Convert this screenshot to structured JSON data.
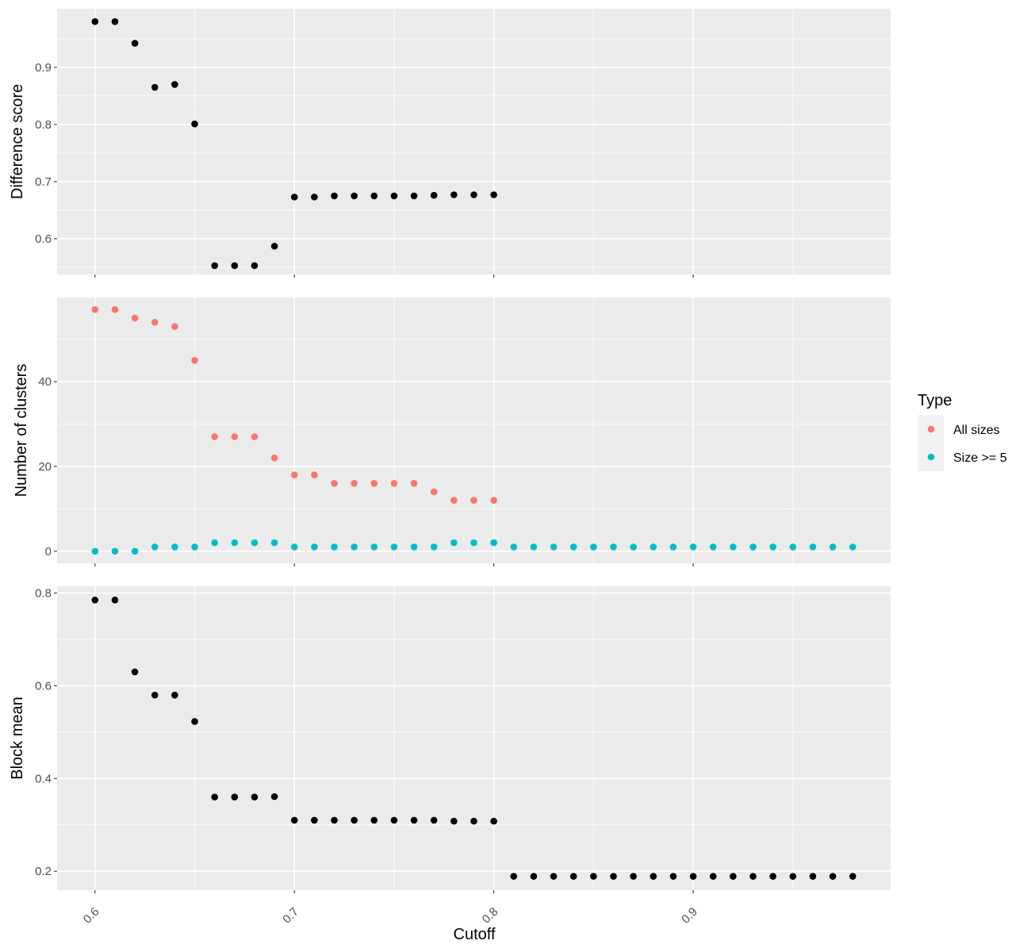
{
  "chart_data": {
    "type": "scatter",
    "xlabel": "Cutoff",
    "x_ticks": [
      0.6,
      0.7,
      0.8,
      0.9
    ],
    "x_tick_labels": [
      "0.6",
      "0.7",
      "0.8",
      "0.9"
    ],
    "xlim": [
      0.581,
      0.999
    ],
    "grid": true,
    "legend": {
      "title": "Type",
      "placement": "right",
      "entries": [
        {
          "name": "All sizes",
          "color": "#F8766D"
        },
        {
          "name": "Size >= 5",
          "color": "#00BFC4"
        }
      ]
    },
    "panels": [
      {
        "ylabel": "Difference score",
        "ylim": [
          0.5375,
          1.0025
        ],
        "y_ticks": [
          0.6,
          0.7,
          0.8,
          0.9
        ],
        "y_tick_labels": [
          "0.6",
          "0.7",
          "0.8",
          "0.9"
        ],
        "series": [
          {
            "color": "#000000",
            "x": [
              0.6,
              0.61,
              0.62,
              0.63,
              0.64,
              0.65,
              0.66,
              0.67,
              0.68,
              0.69,
              0.7,
              0.71,
              0.72,
              0.73,
              0.74,
              0.75,
              0.76,
              0.77,
              0.78,
              0.79,
              0.8
            ],
            "y": [
              0.98,
              0.98,
              0.942,
              0.865,
              0.87,
              0.801,
              0.553,
              0.553,
              0.553,
              0.587,
              0.673,
              0.673,
              0.675,
              0.675,
              0.675,
              0.675,
              0.675,
              0.676,
              0.677,
              0.677,
              0.677
            ]
          }
        ]
      },
      {
        "ylabel": "Number of clusters",
        "ylim": [
          -2.85,
          59.85
        ],
        "y_ticks": [
          0,
          20,
          40
        ],
        "y_tick_labels": [
          "0",
          "20",
          "40"
        ],
        "series": [
          {
            "name": "All sizes",
            "color": "#F8766D",
            "x": [
              0.6,
              0.61,
              0.62,
              0.63,
              0.64,
              0.65,
              0.66,
              0.67,
              0.68,
              0.69,
              0.7,
              0.71,
              0.72,
              0.73,
              0.74,
              0.75,
              0.76,
              0.77,
              0.78,
              0.79,
              0.8
            ],
            "y": [
              57,
              57,
              55,
              54,
              53,
              45,
              27,
              27,
              27,
              22,
              18,
              18,
              16,
              16,
              16,
              16,
              16,
              14,
              12,
              12,
              12
            ]
          },
          {
            "name": "Size >= 5",
            "color": "#00BFC4",
            "x": [
              0.6,
              0.61,
              0.62,
              0.63,
              0.64,
              0.65,
              0.66,
              0.67,
              0.68,
              0.69,
              0.7,
              0.71,
              0.72,
              0.73,
              0.74,
              0.75,
              0.76,
              0.77,
              0.78,
              0.79,
              0.8,
              0.81,
              0.82,
              0.83,
              0.84,
              0.85,
              0.86,
              0.87,
              0.88,
              0.89,
              0.9,
              0.91,
              0.92,
              0.93,
              0.94,
              0.95,
              0.96,
              0.97,
              0.98
            ],
            "y": [
              0,
              0,
              0,
              1,
              1,
              1,
              2,
              2,
              2,
              2,
              1,
              1,
              1,
              1,
              1,
              1,
              1,
              1,
              2,
              2,
              2,
              1,
              1,
              1,
              1,
              1,
              1,
              1,
              1,
              1,
              1,
              1,
              1,
              1,
              1,
              1,
              1,
              1,
              1
            ]
          }
        ]
      },
      {
        "ylabel": "Block mean",
        "ylim": [
          0.1593,
          0.8147
        ],
        "y_ticks": [
          0.2,
          0.4,
          0.6,
          0.8
        ],
        "y_tick_labels": [
          "0.2",
          "0.4",
          "0.6",
          "0.8"
        ],
        "series": [
          {
            "color": "#000000",
            "x": [
              0.6,
              0.61,
              0.62,
              0.63,
              0.64,
              0.65,
              0.66,
              0.67,
              0.68,
              0.69,
              0.7,
              0.71,
              0.72,
              0.73,
              0.74,
              0.75,
              0.76,
              0.77,
              0.78,
              0.79,
              0.8,
              0.81,
              0.82,
              0.83,
              0.84,
              0.85,
              0.86,
              0.87,
              0.88,
              0.89,
              0.9,
              0.91,
              0.92,
              0.93,
              0.94,
              0.95,
              0.96,
              0.97,
              0.98
            ],
            "y": [
              0.785,
              0.785,
              0.63,
              0.58,
              0.58,
              0.523,
              0.36,
              0.36,
              0.36,
              0.361,
              0.31,
              0.31,
              0.31,
              0.31,
              0.31,
              0.31,
              0.31,
              0.31,
              0.308,
              0.308,
              0.308,
              0.189,
              0.189,
              0.189,
              0.189,
              0.189,
              0.189,
              0.189,
              0.189,
              0.189,
              0.189,
              0.189,
              0.189,
              0.189,
              0.189,
              0.189,
              0.189,
              0.189,
              0.189
            ]
          }
        ]
      }
    ]
  }
}
